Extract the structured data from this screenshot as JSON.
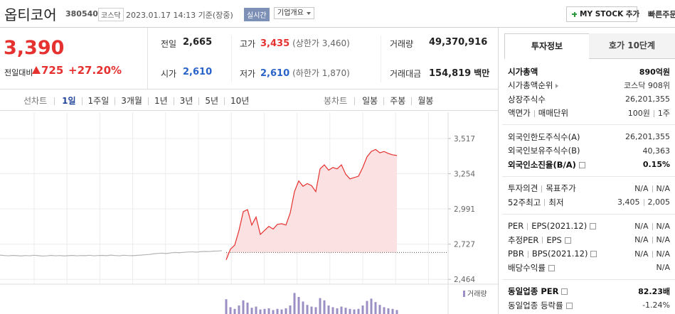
{
  "header": {
    "name": "옵티코어",
    "code": "380540",
    "market": "코스닥",
    "time": "2023.01.17 14:13 기준(장중)",
    "realtime": "실시간",
    "overview": "기업개요",
    "mystock": "MY STOCK 추가",
    "quick_order": "빠른주문"
  },
  "quote": {
    "price": "3,390",
    "change_label": "전일대비",
    "change": "725",
    "change_rate": "+27.20%",
    "cells": [
      {
        "label": "전일",
        "value": "2,665"
      },
      {
        "label": "고가",
        "value": "3,435",
        "note": "(상한가 3,460)"
      },
      {
        "label": "거래량",
        "value": "49,370,916"
      },
      {
        "label": "시가",
        "value": "2,610"
      },
      {
        "label": "저가",
        "value": "2,610",
        "note": "(하한가 1,870)"
      },
      {
        "label": "거래대금",
        "value": "154,819",
        "unit": "백만"
      }
    ]
  },
  "chart_tabs": {
    "line_label": "선차트",
    "line_periods": [
      "1일",
      "1주일",
      "3개월",
      "1년",
      "3년",
      "5년",
      "10년"
    ],
    "candle_label": "봉차트",
    "candle_periods": [
      "일봉",
      "주봉",
      "월봉"
    ]
  },
  "chart_data": {
    "type": "line",
    "ylim": [
      2428,
      3676
    ],
    "yticks": [
      {
        "value": 3517,
        "label": "3,517"
      },
      {
        "value": 3254,
        "label": "3,254"
      },
      {
        "value": 2991,
        "label": "2,991"
      },
      {
        "value": 2727,
        "label": "2,727"
      },
      {
        "value": 2464,
        "label": "2,464"
      }
    ],
    "reference_line": 2665,
    "y2lim": [
      0,
      4000000
    ],
    "series": [
      {
        "color": "#b4b4b4",
        "values": [
          2645,
          2642,
          2640,
          2643,
          2641,
          2639,
          2642,
          2640,
          2644,
          2641,
          2638,
          2640,
          2643,
          2640,
          2642,
          2639,
          2641,
          2643,
          2640,
          2642,
          2641,
          2644,
          2640,
          2642,
          2643,
          2641,
          2645,
          2642,
          2640,
          2644,
          2642,
          2641,
          2643,
          2645,
          2648,
          2650,
          2655,
          2658,
          2660,
          2657,
          2662,
          2665,
          2663,
          2666,
          2668,
          2670,
          2667,
          2671,
          2673,
          2672,
          2675,
          2676,
          2678,
          null,
          null,
          null,
          null,
          null,
          null,
          null,
          null,
          null,
          null,
          null,
          null,
          null,
          null,
          null,
          null,
          null,
          null,
          null,
          null,
          null,
          null,
          null,
          null,
          null,
          null,
          null,
          null,
          null,
          null,
          null,
          null,
          null,
          null,
          null,
          null,
          null,
          null,
          null,
          null,
          null,
          null,
          null,
          null,
          null,
          null,
          null,
          null,
          null,
          null,
          null,
          null
        ]
      },
      {
        "color": "#e5312f",
        "fill": "#fbe1e2",
        "values": [
          null,
          null,
          null,
          null,
          null,
          null,
          null,
          null,
          null,
          null,
          null,
          null,
          null,
          null,
          null,
          null,
          null,
          null,
          null,
          null,
          null,
          null,
          null,
          null,
          null,
          null,
          null,
          null,
          null,
          null,
          null,
          null,
          null,
          null,
          null,
          null,
          null,
          null,
          null,
          null,
          null,
          null,
          null,
          null,
          null,
          null,
          null,
          null,
          null,
          null,
          null,
          null,
          null,
          2610,
          2690,
          2720,
          2830,
          2970,
          2985,
          2870,
          2930,
          2800,
          2830,
          2860,
          2840,
          2875,
          2880,
          2870,
          2960,
          3120,
          3200,
          3160,
          3180,
          3165,
          3120,
          3290,
          3320,
          3280,
          3300,
          3290,
          3320,
          3250,
          3215,
          3225,
          3235,
          3300,
          3380,
          3420,
          3435,
          3410,
          3420,
          3405,
          3395,
          3390,
          null,
          null,
          null,
          null,
          null,
          null,
          null,
          null,
          null,
          null,
          null
        ]
      },
      {
        "name": "거래량",
        "axis": "y2",
        "color": "#9c8fc4",
        "values": [
          null,
          null,
          null,
          null,
          null,
          null,
          null,
          null,
          null,
          null,
          null,
          null,
          null,
          null,
          null,
          null,
          null,
          null,
          null,
          null,
          null,
          null,
          null,
          null,
          null,
          null,
          null,
          null,
          null,
          null,
          null,
          null,
          null,
          null,
          null,
          null,
          null,
          null,
          null,
          null,
          null,
          null,
          null,
          null,
          null,
          null,
          null,
          null,
          null,
          null,
          null,
          null,
          null,
          2600000,
          1200000,
          900000,
          1500000,
          2400000,
          2000000,
          1100000,
          1300000,
          800000,
          900000,
          1000000,
          700000,
          900000,
          800000,
          1000000,
          1500000,
          3700000,
          3000000,
          2200000,
          1600000,
          1300000,
          1200000,
          2800000,
          2400000,
          1500000,
          1200000,
          1000000,
          1300000,
          1100000,
          900000,
          800000,
          900000,
          1500000,
          2300000,
          2700000,
          2100000,
          1600000,
          1200000,
          1000000,
          900000,
          700000,
          null,
          null,
          null,
          null,
          null,
          null,
          null,
          null,
          null,
          null,
          null
        ]
      }
    ]
  },
  "info_tabs": [
    "투자정보",
    "호가 10단계"
  ],
  "info_groups": [
    [
      {
        "labels": [
          "시가총액"
        ],
        "values": [
          "890억원"
        ],
        "emphasis": true
      },
      {
        "labels": [
          "시가총액순위"
        ],
        "values": [
          "코스닥 908위"
        ],
        "link": true
      },
      {
        "labels": [
          "상장주식수"
        ],
        "values": [
          "26,201,355"
        ]
      },
      {
        "labels": [
          "액면가",
          "매매단위"
        ],
        "values": [
          "100원",
          "1주"
        ]
      }
    ],
    [
      {
        "labels": [
          "외국인한도주식수(A)"
        ],
        "values": [
          "26,201,355"
        ]
      },
      {
        "labels": [
          "외국인보유주식수(B)"
        ],
        "values": [
          "40,363"
        ]
      },
      {
        "labels": [
          "외국인소진율(B/A)"
        ],
        "values": [
          "0.15%"
        ],
        "emphasis": true,
        "help": true
      }
    ],
    [
      {
        "labels": [
          "투자의견",
          "목표주가"
        ],
        "values": [
          "N/A",
          "N/A"
        ]
      },
      {
        "labels": [
          "52주최고",
          "최저"
        ],
        "values": [
          "3,405",
          "2,005"
        ]
      }
    ],
    [
      {
        "labels": [
          "PER",
          "EPS(2021.12)"
        ],
        "values": [
          "N/A",
          "N/A"
        ],
        "help": true
      },
      {
        "labels": [
          "추정PER",
          "EPS"
        ],
        "values": [
          "N/A",
          "N/A"
        ],
        "help": true
      },
      {
        "labels": [
          "PBR",
          "BPS(2021.12)"
        ],
        "values": [
          "N/A",
          "N/A"
        ],
        "help": true
      },
      {
        "labels": [
          "배당수익률"
        ],
        "values": [
          "N/A"
        ],
        "help": true
      }
    ],
    [
      {
        "labels": [
          "동일업종 PER"
        ],
        "values": [
          "82.23배"
        ],
        "emphasis": true,
        "help": true
      },
      {
        "labels": [
          "동일업종 등락률"
        ],
        "values": [
          "-1.24%"
        ],
        "tone": "down",
        "help": true
      }
    ]
  ]
}
